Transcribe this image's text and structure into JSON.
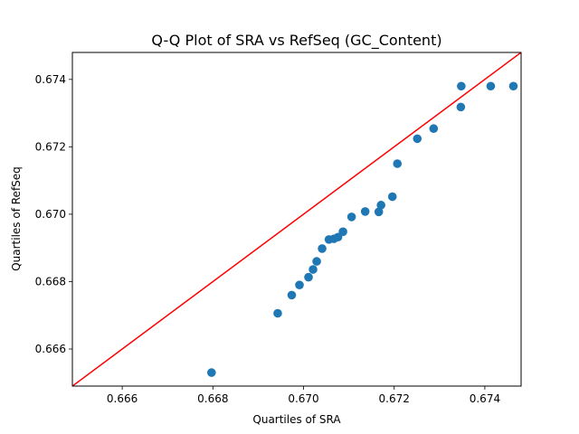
{
  "chart_data": {
    "type": "scatter",
    "title": "Q-Q Plot of SRA vs RefSeq (GC_Content)",
    "xlabel": "Quartiles of SRA",
    "ylabel": "Quartiles of RefSeq",
    "xlim": [
      0.6649,
      0.6748
    ],
    "ylim": [
      0.6649,
      0.6748
    ],
    "xticks": [
      "0.666",
      "0.668",
      "0.670",
      "0.672",
      "0.674"
    ],
    "yticks": [
      "0.666",
      "0.668",
      "0.670",
      "0.672",
      "0.674"
    ],
    "grid": false,
    "point_color": "#1f77b4",
    "reference_line": {
      "color": "#ff0000",
      "slope": 1,
      "intercept": 0
    },
    "points": [
      {
        "x": 0.66797,
        "y": 0.6653
      },
      {
        "x": 0.66943,
        "y": 0.66706
      },
      {
        "x": 0.66974,
        "y": 0.6676
      },
      {
        "x": 0.66991,
        "y": 0.6679
      },
      {
        "x": 0.67011,
        "y": 0.66813
      },
      {
        "x": 0.67021,
        "y": 0.66836
      },
      {
        "x": 0.67029,
        "y": 0.6686
      },
      {
        "x": 0.67041,
        "y": 0.66898
      },
      {
        "x": 0.67056,
        "y": 0.66925
      },
      {
        "x": 0.67067,
        "y": 0.66927
      },
      {
        "x": 0.67076,
        "y": 0.66932
      },
      {
        "x": 0.67087,
        "y": 0.66948
      },
      {
        "x": 0.67106,
        "y": 0.66992
      },
      {
        "x": 0.67136,
        "y": 0.67008
      },
      {
        "x": 0.67166,
        "y": 0.67007
      },
      {
        "x": 0.67171,
        "y": 0.67027
      },
      {
        "x": 0.67196,
        "y": 0.67052
      },
      {
        "x": 0.67207,
        "y": 0.6715
      },
      {
        "x": 0.67251,
        "y": 0.67224
      },
      {
        "x": 0.67287,
        "y": 0.67254
      },
      {
        "x": 0.67347,
        "y": 0.67318
      },
      {
        "x": 0.67348,
        "y": 0.6738
      },
      {
        "x": 0.67413,
        "y": 0.6738
      },
      {
        "x": 0.67463,
        "y": 0.6738
      }
    ]
  }
}
